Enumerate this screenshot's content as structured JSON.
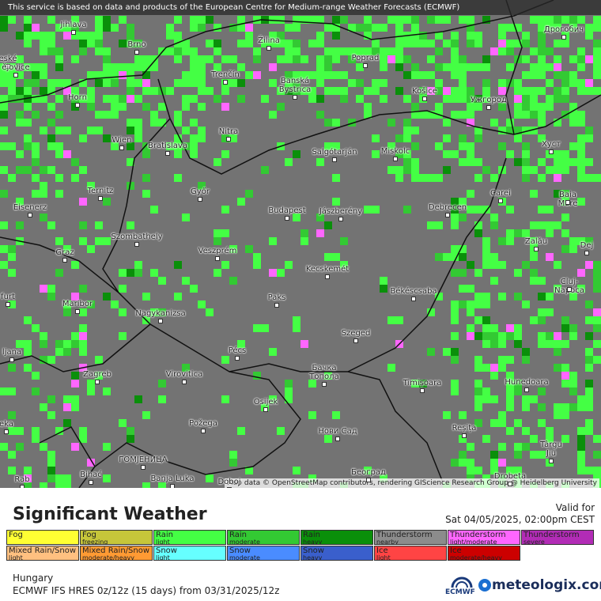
{
  "notice": "This service is based on data and products of the European Centre for Medium-range Weather Forecasts (ECMWF)",
  "attribution": "Map data © OpenStreetMap contributors, rendering GIScience Research Group @ Heidelberg University",
  "cities": [
    "Jihlava",
    "Brno",
    "Žilina",
    "Дрогобич",
    "eské",
    "ějovice",
    "Poprad",
    "Trenčín",
    "Banská\nBystrica",
    "Košice",
    "Ужгород",
    "Horn",
    "Nitra",
    "Wien",
    "Bratislava",
    "Salgótarján",
    "Miskolc",
    "Хуст",
    "Ternitz",
    "Győr",
    "Carei",
    "Baia Mare",
    "Eisenerz",
    "Budapest",
    "Jászberény",
    "Debrecen",
    "Szombathely",
    "Zalău",
    "Veszprém",
    "Graz",
    "Dej",
    "Kecskemét",
    "Cluj-Napoca",
    "Paks",
    "Békéscsaba",
    "furt",
    "Maribor",
    "Nagykanizsa",
    "Szeged",
    "ljana",
    "Pécs",
    "Zagreb",
    "Virovitica",
    "Бачка\nТопола",
    "Timișoara",
    "Hunedoara",
    "Osijek",
    "eka",
    "Požega",
    "Reșița",
    "Нови Сад",
    "Târgu\nJiu",
    "ГОМЈЕНИЦА",
    "Bihać",
    "Banja Luka",
    "Doboj",
    "Београд",
    "Drobeta",
    "Rab"
  ],
  "legend": {
    "title": "Significant Weather",
    "valid_label": "Valid for",
    "valid_time": "Sat 04/05/2025, 02:00pm CEST",
    "items": [
      {
        "name": "Fog",
        "sub": "",
        "color": "#ffff33"
      },
      {
        "name": "Fog",
        "sub": "freezing",
        "color": "#c6c63a"
      },
      {
        "name": "Rain",
        "sub": "light",
        "color": "#44ff44"
      },
      {
        "name": "Rain",
        "sub": "moderate",
        "color": "#33c933"
      },
      {
        "name": "Rain",
        "sub": "heavy",
        "color": "#0a8f0a"
      },
      {
        "name": "Thunderstorm",
        "sub": "nearby",
        "color": "#8c8c8c"
      },
      {
        "name": "Thunderstorm",
        "sub": "light/moderate",
        "color": "#ff66ff"
      },
      {
        "name": "Thunderstorm",
        "sub": "severe",
        "color": "#b22cb6"
      },
      {
        "name": "Mixed Rain/Snow",
        "sub": "light",
        "color": "#ffc080"
      },
      {
        "name": "Mixed Rain/Snow",
        "sub": "moderate/heavy",
        "color": "#ff9a33"
      },
      {
        "name": "Snow",
        "sub": "light",
        "color": "#66ffff"
      },
      {
        "name": "Snow",
        "sub": "moderate",
        "color": "#4a8cff"
      },
      {
        "name": "Snow",
        "sub": "heavy",
        "color": "#3a5fcc"
      },
      {
        "name": "Ice",
        "sub": "light",
        "color": "#ff4444"
      },
      {
        "name": "Ice",
        "sub": "moderate/heavy",
        "color": "#cc0000"
      }
    ]
  },
  "region": "Hungary",
  "model": "ECMWF IFS HRES 0z/12z (15 days) from  03/31/2025/12z",
  "ecmwf_logo": "ECMWF",
  "brand": "meteologix.com"
}
